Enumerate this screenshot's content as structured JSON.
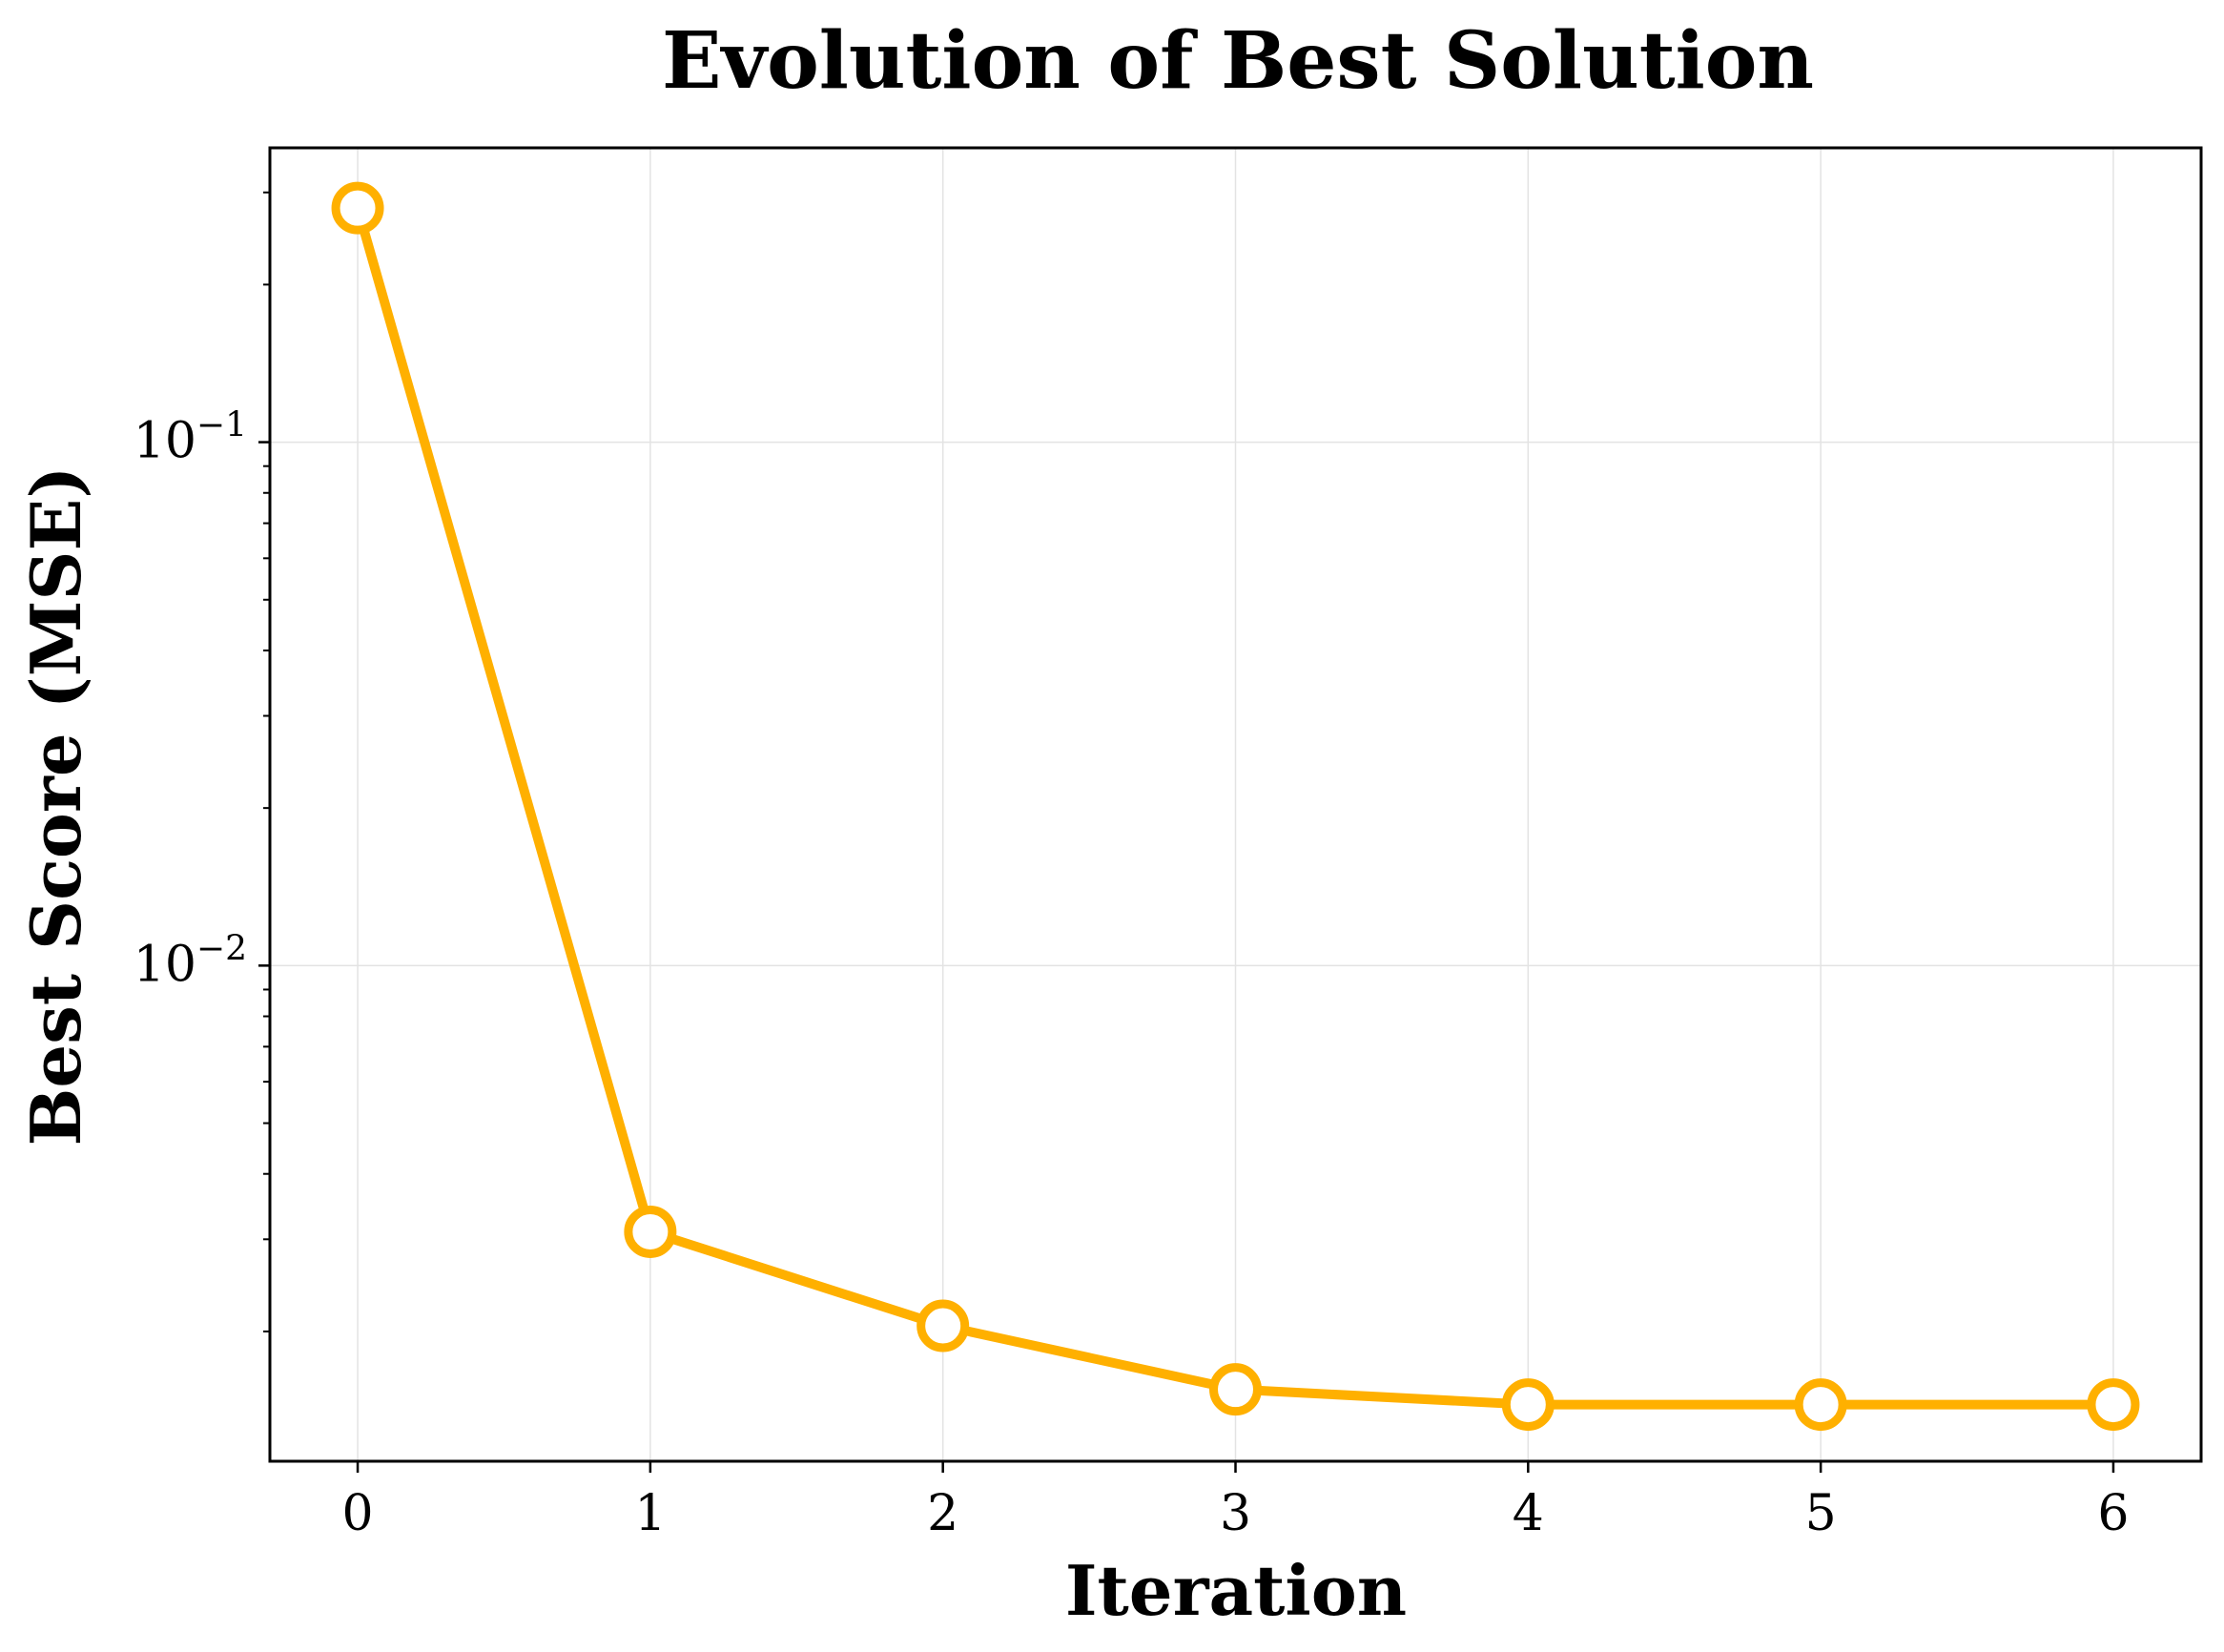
{
  "chart_data": {
    "type": "line",
    "title": "Evolution of Best Solution",
    "xlabel": "Iteration",
    "ylabel": "Best Score (MSE)",
    "x": [
      0,
      1,
      2,
      3,
      4,
      5,
      6
    ],
    "series": [
      {
        "values": [
          0.28,
          0.0031,
          0.00205,
          0.00155,
          0.00145,
          0.00145,
          0.00145
        ],
        "color": "#FFB000"
      }
    ],
    "xlim": [
      -0.3,
      6.3
    ],
    "ylim": [
      0.00113,
      0.365
    ],
    "yscale": "log",
    "xticks": [
      "0",
      "1",
      "2",
      "3",
      "4",
      "5",
      "6"
    ],
    "yticks": [
      {
        "base": "10",
        "exp": "−1",
        "value": 0.1
      },
      {
        "base": "10",
        "exp": "−2",
        "value": 0.01
      }
    ],
    "grid": true,
    "marker": "open-circle"
  }
}
